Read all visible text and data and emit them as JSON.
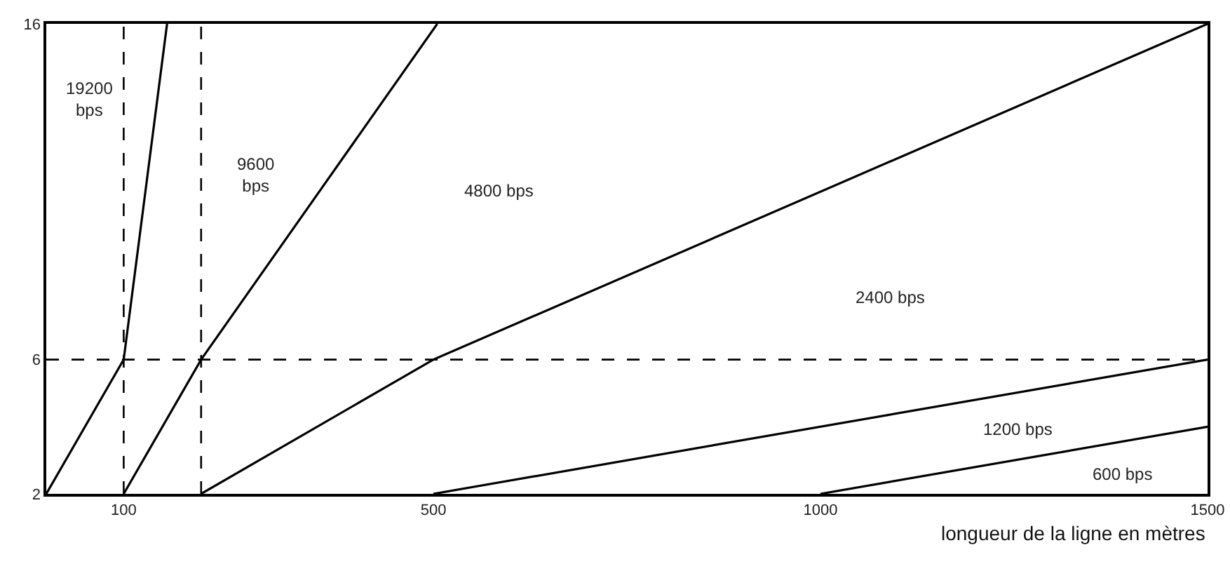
{
  "chart_data": {
    "type": "line",
    "xlabel": "longueur de la ligne en mètres",
    "xlim": [
      0,
      1500
    ],
    "xticks": [
      100,
      500,
      1000,
      1500
    ],
    "ylim": [
      2,
      16
    ],
    "yticks": [
      2,
      6,
      16
    ],
    "grid": false,
    "marker": "none",
    "line_style": "solid",
    "series": [
      {
        "color": "#000000",
        "x": [
          0,
          100,
          156
        ],
        "values": [
          2,
          6,
          16
        ]
      },
      {
        "color": "#000000",
        "x": [
          100,
          200,
          505
        ],
        "values": [
          2,
          6,
          16
        ]
      },
      {
        "color": "#000000",
        "x": [
          200,
          500,
          1500
        ],
        "values": [
          2,
          6,
          16
        ]
      },
      {
        "color": "#000000",
        "x": [
          500,
          1500
        ],
        "values": [
          2,
          6
        ]
      },
      {
        "color": "#000000",
        "x": [
          1000,
          1500
        ],
        "values": [
          2,
          4
        ]
      }
    ],
    "ref_lines": [
      {
        "axis": "y",
        "value": 6,
        "color": "#000000",
        "line_style": "dashed"
      },
      {
        "axis": "x",
        "value": 100,
        "color": "#000000",
        "line_style": "dashed"
      },
      {
        "axis": "x",
        "value": 200,
        "color": "#000000",
        "line_style": "dashed"
      }
    ],
    "annotations": [
      "19200\nbps",
      "9600\nbps",
      "4800 bps",
      "2400 bps",
      "1200 bps",
      "600 bps"
    ]
  }
}
